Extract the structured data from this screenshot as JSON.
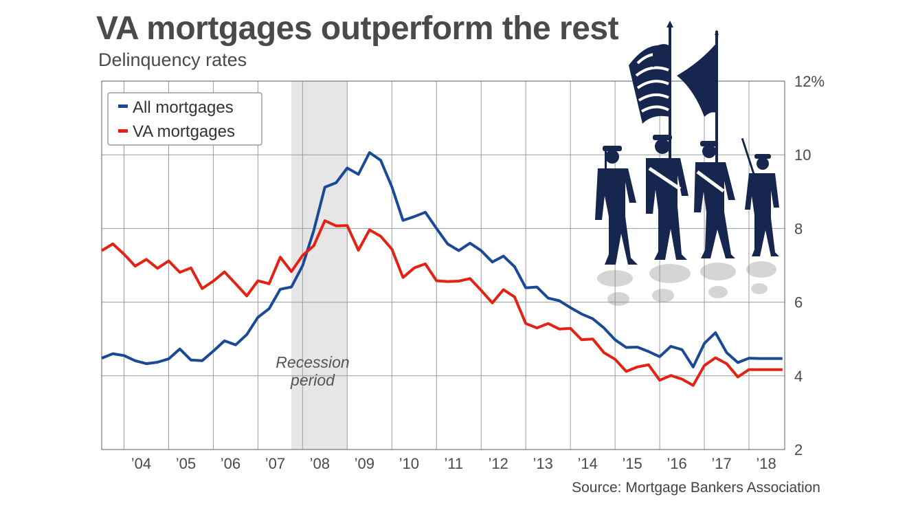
{
  "header": {
    "title": "VA mortgages outperform the rest",
    "subtitle": "Delinquency rates",
    "source": "Source: Mortgage Bankers Association"
  },
  "recession": {
    "label_line1": "Recession",
    "label_line2": "period",
    "start": 2007.75,
    "end": 2009.0
  },
  "chart_data": {
    "type": "line",
    "title": "VA mortgages outperform the rest",
    "subtitle": "Delinquency rates",
    "xlim": [
      2003.5,
      2018.8
    ],
    "ylim": [
      2,
      12
    ],
    "y_ticks": [
      2,
      4,
      6,
      8,
      10,
      12
    ],
    "y_tick_labels": [
      "2",
      "4",
      "6",
      "8",
      "10",
      "12%"
    ],
    "x_tick_labels": [
      "’04",
      "’05",
      "’06",
      "’07",
      "’08",
      "’09",
      "’10",
      "’11",
      "’12",
      "’13",
      "’14",
      "’15",
      "’16",
      "’17",
      "’18"
    ],
    "grid": true,
    "legend_position": "top-left",
    "series": [
      {
        "name": "All mortgages",
        "color": "#1a4a96",
        "x": [
          2003.5,
          2003.75,
          2004.0,
          2004.25,
          2004.5,
          2004.75,
          2005.0,
          2005.25,
          2005.5,
          2005.75,
          2006.0,
          2006.25,
          2006.5,
          2006.75,
          2007.0,
          2007.25,
          2007.5,
          2007.75,
          2008.0,
          2008.25,
          2008.5,
          2008.75,
          2009.0,
          2009.25,
          2009.5,
          2009.75,
          2010.0,
          2010.25,
          2010.5,
          2010.75,
          2011.0,
          2011.25,
          2011.5,
          2011.75,
          2012.0,
          2012.25,
          2012.5,
          2012.75,
          2013.0,
          2013.25,
          2013.5,
          2013.75,
          2014.0,
          2014.25,
          2014.5,
          2014.75,
          2015.0,
          2015.25,
          2015.5,
          2015.75,
          2016.0,
          2016.25,
          2016.5,
          2016.75,
          2017.0,
          2017.25,
          2017.5,
          2017.75,
          2018.0,
          2018.25,
          2018.5,
          2018.75
        ],
        "y": [
          4.48,
          4.6,
          4.55,
          4.41,
          4.33,
          4.37,
          4.46,
          4.73,
          4.43,
          4.41,
          4.67,
          4.95,
          4.84,
          5.12,
          5.59,
          5.82,
          6.35,
          6.41,
          6.99,
          7.94,
          9.12,
          9.24,
          9.64,
          9.47,
          10.06,
          9.85,
          9.13,
          8.22,
          8.32,
          8.44,
          8.0,
          7.58,
          7.4,
          7.6,
          7.4,
          7.09,
          7.25,
          6.96,
          6.39,
          6.41,
          6.11,
          6.04,
          5.85,
          5.68,
          5.55,
          5.3,
          4.98,
          4.77,
          4.78,
          4.66,
          4.52,
          4.8,
          4.71,
          4.24,
          4.88,
          5.17,
          4.63,
          4.36,
          4.48,
          4.47,
          4.47,
          4.47
        ]
      },
      {
        "name": "VA mortgages",
        "color": "#e32214",
        "x": [
          2003.5,
          2003.75,
          2004.0,
          2004.25,
          2004.5,
          2004.75,
          2005.0,
          2005.25,
          2005.5,
          2005.75,
          2006.0,
          2006.25,
          2006.5,
          2006.75,
          2007.0,
          2007.25,
          2007.5,
          2007.75,
          2008.0,
          2008.25,
          2008.5,
          2008.75,
          2009.0,
          2009.25,
          2009.5,
          2009.75,
          2010.0,
          2010.25,
          2010.5,
          2010.75,
          2011.0,
          2011.25,
          2011.5,
          2011.75,
          2012.0,
          2012.25,
          2012.5,
          2012.75,
          2013.0,
          2013.25,
          2013.5,
          2013.75,
          2014.0,
          2014.25,
          2014.5,
          2014.75,
          2015.0,
          2015.25,
          2015.5,
          2015.75,
          2016.0,
          2016.25,
          2016.5,
          2016.75,
          2017.0,
          2017.25,
          2017.5,
          2017.75,
          2018.0,
          2018.25,
          2018.5,
          2018.75
        ],
        "y": [
          7.4,
          7.58,
          7.3,
          6.98,
          7.16,
          6.92,
          7.12,
          6.81,
          6.93,
          6.37,
          6.57,
          6.82,
          6.5,
          6.17,
          6.58,
          6.5,
          7.22,
          6.83,
          7.27,
          7.53,
          8.21,
          8.07,
          8.08,
          7.41,
          7.96,
          7.79,
          7.44,
          6.67,
          6.93,
          7.04,
          6.58,
          6.56,
          6.57,
          6.64,
          6.32,
          5.98,
          6.34,
          6.14,
          5.42,
          5.3,
          5.42,
          5.27,
          5.29,
          4.98,
          5.0,
          4.63,
          4.45,
          4.12,
          4.24,
          4.3,
          3.88,
          4.01,
          3.91,
          3.74,
          4.28,
          4.49,
          4.33,
          3.97,
          4.17,
          4.17,
          4.17,
          4.17
        ]
      }
    ]
  }
}
